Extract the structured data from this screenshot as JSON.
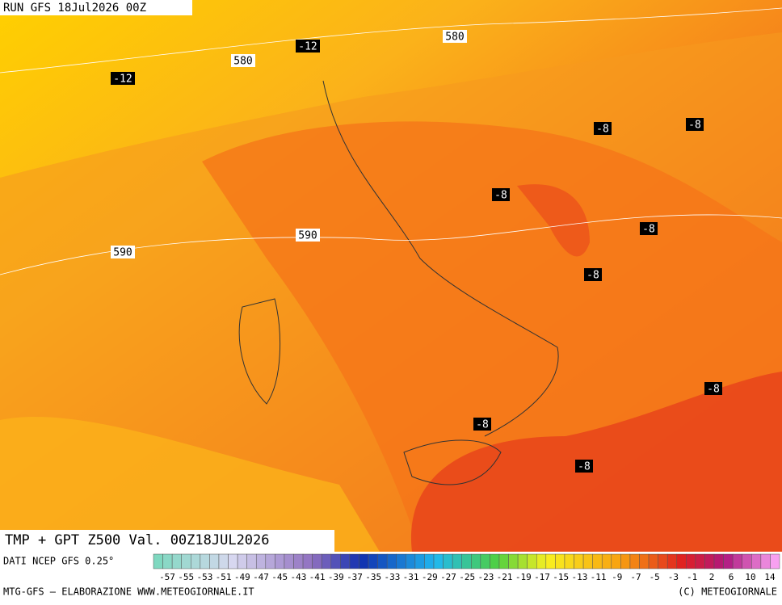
{
  "header": {
    "run": "RUN GFS 18Jul2026 00Z"
  },
  "contour_labels": [
    "580",
    "580",
    "590",
    "590",
    "-12",
    "-12",
    "-8",
    "-8",
    "-8",
    "-8",
    "-8",
    "-8",
    "-8",
    "-8"
  ],
  "footer": {
    "title": "TMP + GPT Z500 Val. 00Z18JUL2026",
    "source": "DATI NCEP GFS 0.25°",
    "credit": "MTG-GFS — ELABORAZIONE WWW.METEOGIORNALE.IT",
    "copyright": "(C) METEOGIORNALE"
  },
  "colorbar_labels": [
    "-57",
    "-55",
    "-53",
    "-51",
    "-49",
    "-47",
    "-45",
    "-43",
    "-41",
    "-39",
    "-37",
    "-35",
    "-33",
    "-31",
    "-29",
    "-27",
    "-25",
    "-23",
    "-21",
    "-19",
    "-17",
    "-15",
    "-13",
    "-11",
    "-9",
    "-7",
    "-5",
    "-3",
    "-1",
    "2",
    "6",
    "10",
    "14"
  ]
}
